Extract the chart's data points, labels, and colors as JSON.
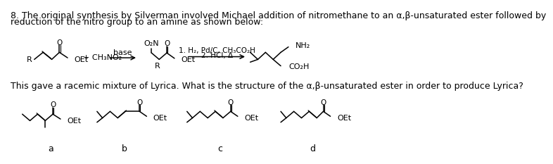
{
  "bg_color": "#ffffff",
  "text1": "8. The original synthesis by Silverman involved Michael addition of nitromethane to an α,β-unsaturated ester followed by",
  "text2": "reduction of the nitro group to an amine as shown below:",
  "text3": "This gave a racemic mixture of Lyrica. What is the structure of the α,β-unsaturated ester in order to produce Lyrica?",
  "label_a": "a",
  "label_b": "b",
  "label_c": "c",
  "label_d": "d",
  "reagent1": "base",
  "reagent2a": "1. H₂, Pd/C, CHもCO₂H",
  "reagent2b": "2. HCl, Δ",
  "nitromethane": "+ CH₃NO₂",
  "o2n": "O₂N",
  "nh2": "NH₂",
  "co2h": "CO₂H",
  "oet": "OEt",
  "R": "R",
  "O": "O",
  "font_size_text": 9,
  "font_size_chem": 8,
  "font_family": "DejaVu Sans"
}
